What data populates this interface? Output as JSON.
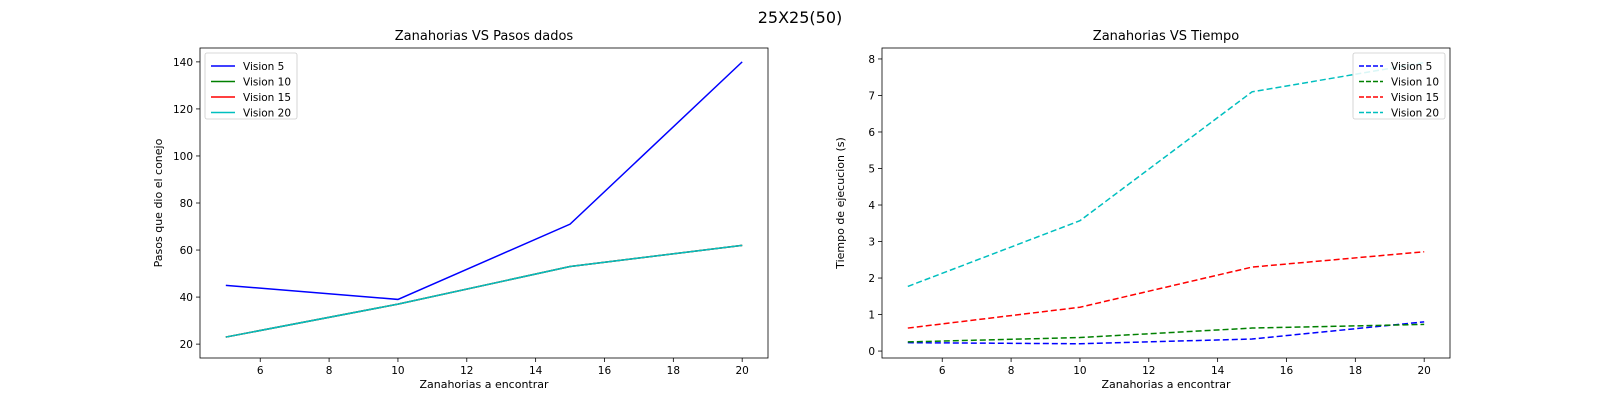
{
  "suptitle": "25X25(50)",
  "chart_data": [
    {
      "type": "line",
      "title": "Zanahorias VS Pasos dados",
      "xlabel": "Zanahorias a encontrar",
      "ylabel": "Pasos que dio el conejo",
      "x": [
        5,
        10,
        15,
        20
      ],
      "xlim": [
        4.25,
        20.75
      ],
      "ylim": [
        14.1,
        145.9
      ],
      "xticks": [
        6,
        8,
        10,
        12,
        14,
        16,
        18,
        20
      ],
      "yticks": [
        20,
        40,
        60,
        80,
        100,
        120,
        140
      ],
      "grid": false,
      "legend_position": "top-left",
      "line_style": "solid",
      "series": [
        {
          "name": "Vision 5",
          "color": "#0000ff",
          "values": [
            45,
            39,
            71,
            140
          ]
        },
        {
          "name": "Vision 10",
          "color": "#008000",
          "values": [
            23,
            37,
            53,
            62
          ]
        },
        {
          "name": "Vision 15",
          "color": "#ff0000",
          "values": [
            23,
            37,
            53,
            62
          ]
        },
        {
          "name": "Vision 20",
          "color": "#00bfbf",
          "values": [
            23,
            37,
            53,
            62
          ]
        }
      ]
    },
    {
      "type": "line",
      "title": "Zanahorias VS Tiempo",
      "xlabel": "Zanahorias a encontrar",
      "ylabel": "Tiempo de ejecucion (s)",
      "x": [
        5,
        10,
        15,
        20
      ],
      "xlim": [
        4.25,
        20.75
      ],
      "ylim": [
        -0.19,
        8.3
      ],
      "xticks": [
        6,
        8,
        10,
        12,
        14,
        16,
        18,
        20
      ],
      "yticks": [
        0,
        1,
        2,
        3,
        4,
        5,
        6,
        7,
        8
      ],
      "grid": false,
      "legend_position": "top-right",
      "line_style": "dashed",
      "series": [
        {
          "name": "Vision 5",
          "color": "#0000ff",
          "values": [
            0.23,
            0.2,
            0.33,
            0.8
          ]
        },
        {
          "name": "Vision 10",
          "color": "#008000",
          "values": [
            0.25,
            0.37,
            0.63,
            0.73
          ]
        },
        {
          "name": "Vision 15",
          "color": "#ff0000",
          "values": [
            0.63,
            1.2,
            2.3,
            2.72
          ]
        },
        {
          "name": "Vision 20",
          "color": "#00bfbf",
          "values": [
            1.77,
            3.57,
            7.1,
            7.9
          ]
        }
      ]
    }
  ]
}
